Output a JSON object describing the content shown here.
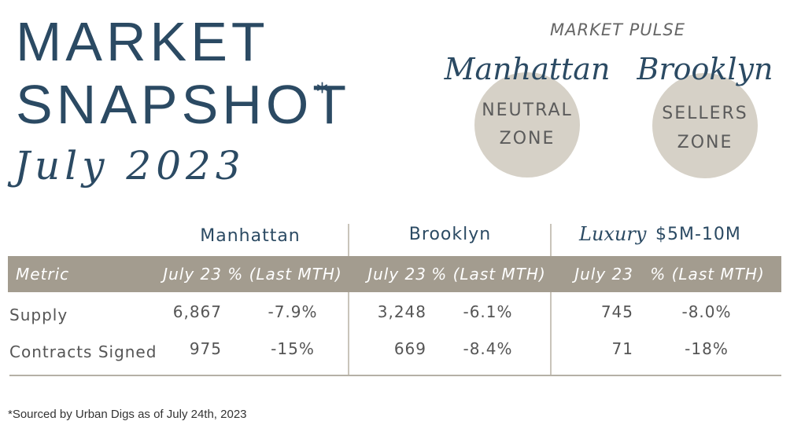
{
  "header": {
    "title_lines": [
      "MARKET",
      "SNAPSHOT"
    ],
    "asterisk": "*",
    "date": "July 2023"
  },
  "pulse": {
    "label": "MARKET PULSE",
    "zones": [
      {
        "name": "Manhattan",
        "lines": [
          "NEUTRAL",
          "ZONE"
        ]
      },
      {
        "name": "Brooklyn",
        "lines": [
          "SELLERS",
          "ZONE"
        ]
      }
    ]
  },
  "table": {
    "groups": [
      "Manhattan",
      "Brooklyn",
      {
        "script": "Luxury",
        "text": "$5M-10M"
      }
    ],
    "columns": [
      "Metric",
      "July 23",
      "% (Last MTH)",
      "July 23",
      "% (Last MTH)",
      "July 23",
      "% (Last MTH)"
    ],
    "rows": [
      [
        "Supply",
        "6,867",
        "-7.9%",
        "3,248",
        "-6.1%",
        "745",
        "-8.0%"
      ],
      [
        "Contracts Signed",
        "975",
        "-15%",
        "669",
        "-8.4%",
        "71",
        "-18%"
      ]
    ]
  },
  "footnote": "*Sourced by Urban Digs as of July 24th, 2023"
}
